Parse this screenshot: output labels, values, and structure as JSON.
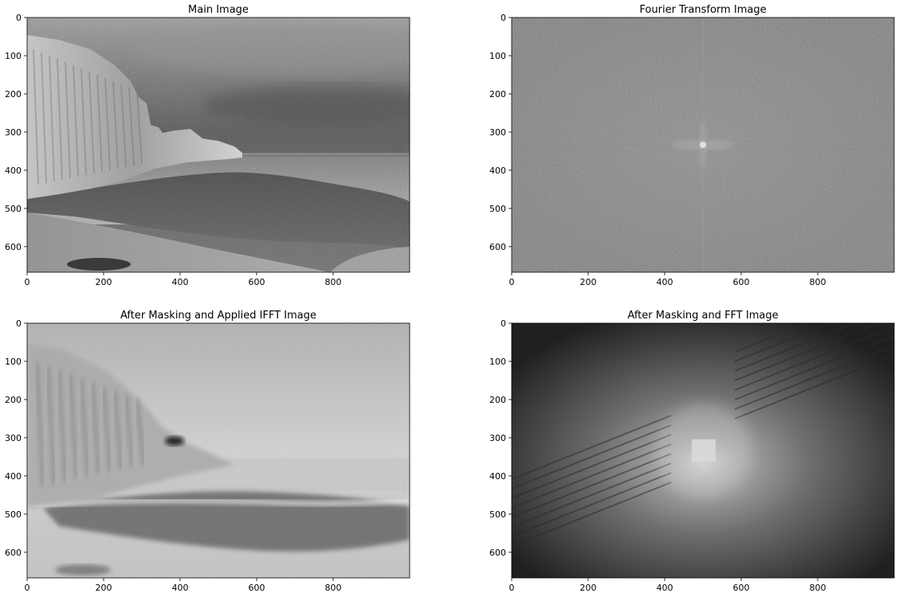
{
  "figure": {
    "background": "#ffffff"
  },
  "chart_data": [
    {
      "type": "image",
      "title": "Main Image",
      "xlim": [
        0,
        1000
      ],
      "ylim": [
        667,
        0
      ],
      "xticks": [
        "0",
        "200",
        "400",
        "600",
        "800"
      ],
      "yticks": [
        "0",
        "100",
        "200",
        "300",
        "400",
        "500",
        "600"
      ],
      "xtick_values": [
        0,
        200,
        400,
        600,
        800
      ],
      "ytick_values": [
        0,
        100,
        200,
        300,
        400,
        500,
        600
      ],
      "colormap": "gray",
      "content": "grayscale photograph of chalk cliffs and beach"
    },
    {
      "type": "image",
      "title": "Fourier Transform Image",
      "xlim": [
        0,
        1000
      ],
      "ylim": [
        667,
        0
      ],
      "xticks": [
        "0",
        "200",
        "400",
        "600",
        "800"
      ],
      "yticks": [
        "0",
        "100",
        "200",
        "300",
        "400",
        "500",
        "600"
      ],
      "xtick_values": [
        0,
        200,
        400,
        600,
        800
      ],
      "ytick_values": [
        0,
        100,
        200,
        300,
        400,
        500,
        600
      ],
      "colormap": "gray",
      "content": "log-magnitude spectrum, bright center at (500, 333)"
    },
    {
      "type": "image",
      "title": "After Masking and Applied IFFT Image",
      "xlim": [
        0,
        1000
      ],
      "ylim": [
        667,
        0
      ],
      "xticks": [
        "0",
        "200",
        "400",
        "600",
        "800"
      ],
      "yticks": [
        "0",
        "100",
        "200",
        "300",
        "400",
        "500",
        "600"
      ],
      "xtick_values": [
        0,
        200,
        400,
        600,
        800
      ],
      "ytick_values": [
        0,
        100,
        200,
        300,
        400,
        500,
        600
      ],
      "colormap": "gray",
      "content": "low-pass filtered reconstruction of the photograph"
    },
    {
      "type": "image",
      "title": "After Masking and FFT Image",
      "xlim": [
        0,
        1000
      ],
      "ylim": [
        667,
        0
      ],
      "xticks": [
        "0",
        "200",
        "400",
        "600",
        "800"
      ],
      "yticks": [
        "0",
        "100",
        "200",
        "300",
        "400",
        "500",
        "600"
      ],
      "xtick_values": [
        0,
        200,
        400,
        600,
        800
      ],
      "ytick_values": [
        0,
        100,
        200,
        300,
        400,
        500,
        600
      ],
      "colormap": "gray",
      "content": "spectrum of masked image with bright square at center"
    }
  ]
}
